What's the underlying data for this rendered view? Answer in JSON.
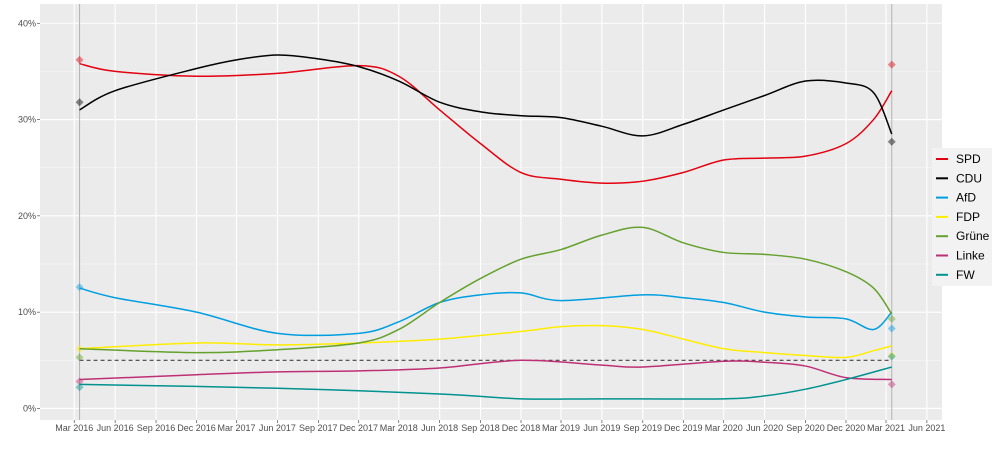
{
  "chart_data": {
    "type": "line",
    "title": "",
    "xlabel": "",
    "ylabel": "",
    "ylim": [
      -1.2,
      42
    ],
    "xlim": [
      "2015-12-15",
      "2021-07-05"
    ],
    "grid": true,
    "legend_position": "right",
    "y_ticks": [
      {
        "v": 0,
        "label": "0%"
      },
      {
        "v": 10,
        "label": "10%"
      },
      {
        "v": 20,
        "label": "20%"
      },
      {
        "v": 30,
        "label": "30%"
      },
      {
        "v": 40,
        "label": "40%"
      }
    ],
    "x_ticks": [
      {
        "d": "2016-03-01",
        "label": "Mar 2016"
      },
      {
        "d": "2016-06-01",
        "label": "Jun 2016"
      },
      {
        "d": "2016-09-01",
        "label": "Sep 2016"
      },
      {
        "d": "2016-12-01",
        "label": "Dec 2016"
      },
      {
        "d": "2017-03-01",
        "label": "Mar 2017"
      },
      {
        "d": "2017-06-01",
        "label": "Jun 2017"
      },
      {
        "d": "2017-09-01",
        "label": "Sep 2017"
      },
      {
        "d": "2017-12-01",
        "label": "Dec 2017"
      },
      {
        "d": "2018-03-01",
        "label": "Mar 2018"
      },
      {
        "d": "2018-06-01",
        "label": "Jun 2018"
      },
      {
        "d": "2018-09-01",
        "label": "Sep 2018"
      },
      {
        "d": "2018-12-01",
        "label": "Dec 2018"
      },
      {
        "d": "2019-03-01",
        "label": "Mar 2019"
      },
      {
        "d": "2019-06-01",
        "label": "Jun 2019"
      },
      {
        "d": "2019-09-01",
        "label": "Sep 2019"
      },
      {
        "d": "2019-12-01",
        "label": "Dec 2019"
      },
      {
        "d": "2020-03-01",
        "label": "Mar 2020"
      },
      {
        "d": "2020-06-01",
        "label": "Jun 2020"
      },
      {
        "d": "2020-09-01",
        "label": "Sep 2020"
      },
      {
        "d": "2020-12-01",
        "label": "Dec 2020"
      },
      {
        "d": "2021-03-01",
        "label": "Mar 2021"
      },
      {
        "d": "2021-06-01",
        "label": "Jun 2021"
      }
    ],
    "election_dates": [
      "2016-03-13",
      "2021-03-14"
    ],
    "threshold": 5,
    "series": [
      {
        "name": "SPD",
        "color": "#e3000f",
        "dates": [
          "2016-03-13",
          "2016-06-01",
          "2016-12-01",
          "2017-06-01",
          "2017-12-01",
          "2018-03-01",
          "2018-06-01",
          "2018-09-01",
          "2018-12-01",
          "2019-03-01",
          "2019-06-01",
          "2019-09-01",
          "2019-12-01",
          "2020-03-01",
          "2020-06-01",
          "2020-09-01",
          "2020-12-01",
          "2021-02-01",
          "2021-03-14"
        ],
        "values": [
          35.8,
          35.0,
          34.5,
          34.8,
          35.6,
          34.5,
          31.0,
          27.5,
          24.5,
          23.8,
          23.4,
          23.6,
          24.5,
          25.8,
          26.0,
          26.2,
          27.5,
          30.0,
          33.0
        ],
        "election": [
          36.2,
          35.7
        ]
      },
      {
        "name": "CDU",
        "color": "#000000",
        "dates": [
          "2016-03-13",
          "2016-06-01",
          "2016-12-01",
          "2017-03-01",
          "2017-06-01",
          "2017-09-01",
          "2017-12-01",
          "2018-03-01",
          "2018-06-01",
          "2018-09-01",
          "2018-12-01",
          "2019-03-01",
          "2019-06-01",
          "2019-09-01",
          "2019-12-01",
          "2020-03-01",
          "2020-06-01",
          "2020-09-01",
          "2020-12-01",
          "2021-02-01",
          "2021-03-14"
        ],
        "values": [
          31.0,
          33.0,
          35.3,
          36.2,
          36.7,
          36.3,
          35.5,
          34.0,
          31.8,
          30.8,
          30.4,
          30.2,
          29.3,
          28.3,
          29.5,
          31.0,
          32.5,
          34.0,
          33.8,
          32.8,
          28.5
        ],
        "election": [
          31.8,
          27.7
        ]
      },
      {
        "name": "AfD",
        "color": "#009ee0",
        "dates": [
          "2016-03-13",
          "2016-06-01",
          "2016-12-01",
          "2017-06-01",
          "2017-12-01",
          "2018-03-01",
          "2018-06-01",
          "2018-09-01",
          "2018-12-01",
          "2019-03-01",
          "2019-09-01",
          "2019-12-01",
          "2020-03-01",
          "2020-06-01",
          "2020-09-01",
          "2020-12-01",
          "2021-02-01",
          "2021-03-14"
        ],
        "values": [
          12.5,
          11.5,
          10.0,
          7.8,
          7.8,
          9.0,
          11.0,
          11.8,
          12.0,
          11.2,
          11.8,
          11.5,
          11.0,
          10.0,
          9.5,
          9.3,
          8.2,
          10.0
        ],
        "election": [
          12.6,
          8.3
        ]
      },
      {
        "name": "FDP",
        "color": "#ffed00",
        "dates": [
          "2016-03-13",
          "2016-12-01",
          "2017-06-01",
          "2017-12-01",
          "2018-06-01",
          "2018-12-01",
          "2019-03-01",
          "2019-06-01",
          "2019-09-01",
          "2019-12-01",
          "2020-03-01",
          "2020-06-01",
          "2020-09-01",
          "2020-12-01",
          "2021-02-01",
          "2021-03-14"
        ],
        "values": [
          6.2,
          6.8,
          6.6,
          6.8,
          7.2,
          8.0,
          8.5,
          8.6,
          8.2,
          7.2,
          6.2,
          5.8,
          5.5,
          5.3,
          6.0,
          6.5
        ],
        "election": [
          6.2,
          5.5
        ]
      },
      {
        "name": "Grüne",
        "color": "#64a12d",
        "dates": [
          "2016-03-13",
          "2016-12-01",
          "2017-06-01",
          "2017-12-01",
          "2018-03-01",
          "2018-06-01",
          "2018-09-01",
          "2018-12-01",
          "2019-03-01",
          "2019-06-01",
          "2019-09-01",
          "2019-12-01",
          "2020-03-01",
          "2020-06-01",
          "2020-09-01",
          "2020-12-01",
          "2021-02-01",
          "2021-03-14"
        ],
        "values": [
          6.2,
          5.8,
          6.1,
          6.8,
          8.2,
          11.0,
          13.5,
          15.5,
          16.5,
          18.0,
          18.8,
          17.2,
          16.2,
          16.0,
          15.5,
          14.2,
          12.5,
          9.8
        ],
        "election": [
          5.3,
          9.3
        ]
      },
      {
        "name": "Linke",
        "color": "#be3075",
        "dates": [
          "2016-03-13",
          "2016-12-01",
          "2017-06-01",
          "2017-12-01",
          "2018-06-01",
          "2018-12-01",
          "2019-06-01",
          "2019-09-01",
          "2020-03-01",
          "2020-06-01",
          "2020-09-01",
          "2020-12-01",
          "2021-03-14"
        ],
        "values": [
          3.0,
          3.5,
          3.8,
          3.9,
          4.2,
          5.0,
          4.5,
          4.3,
          4.9,
          4.8,
          4.4,
          3.2,
          3.0
        ],
        "election": [
          2.8,
          2.5
        ]
      },
      {
        "name": "FW",
        "color": "#00928f",
        "dates": [
          "2016-03-13",
          "2017-06-01",
          "2018-06-01",
          "2018-12-01",
          "2019-06-01",
          "2020-03-01",
          "2020-06-01",
          "2020-09-01",
          "2020-12-01",
          "2021-03-14"
        ],
        "values": [
          2.5,
          2.1,
          1.5,
          1.0,
          1.0,
          1.0,
          1.3,
          2.0,
          3.0,
          4.3
        ],
        "election": [
          2.2,
          5.4
        ]
      }
    ]
  }
}
